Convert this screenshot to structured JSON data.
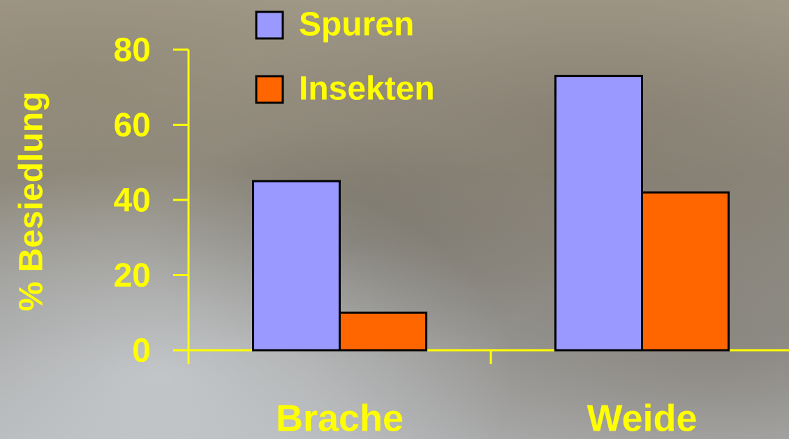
{
  "chart_data": {
    "type": "bar",
    "y_label": "% Besiedlung",
    "categories": [
      "Brache",
      "Weide"
    ],
    "series": [
      {
        "name": "Spuren",
        "color": "#9999ff",
        "values": [
          45,
          73
        ]
      },
      {
        "name": "Insekten",
        "color": "#ff6600",
        "values": [
          10,
          42
        ]
      }
    ],
    "ylim": [
      0,
      80
    ],
    "yticks": [
      0,
      20,
      40,
      60,
      80
    ],
    "axis_color": "#ffff00"
  }
}
